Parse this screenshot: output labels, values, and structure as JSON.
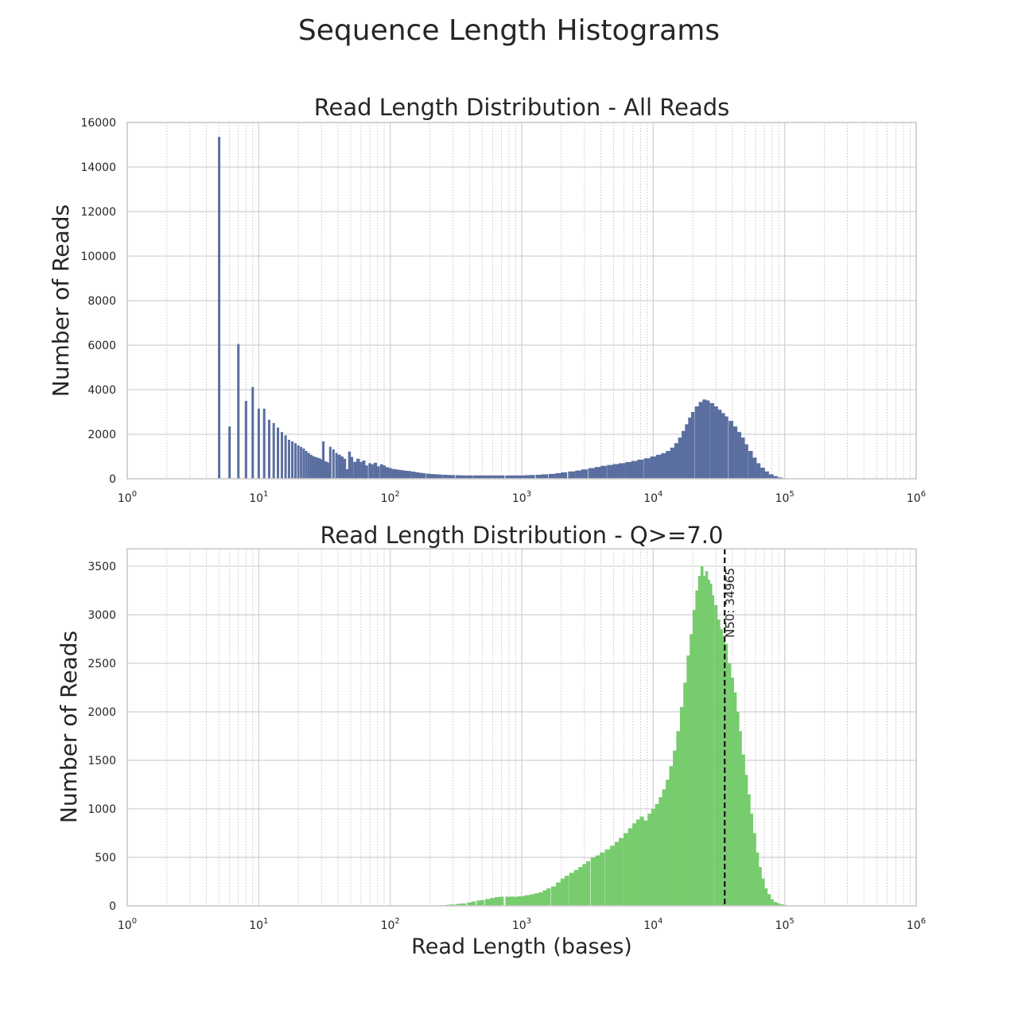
{
  "figure": {
    "title": "Sequence Length Histograms"
  },
  "chart_data": [
    {
      "type": "bar",
      "title": "Read Length Distribution - All Reads",
      "xlabel": "",
      "ylabel": "Number of Reads",
      "xscale": "log",
      "xlim": [
        1,
        1000000
      ],
      "ylim": [
        0,
        16000
      ],
      "yticks": [
        0,
        2000,
        4000,
        6000,
        8000,
        10000,
        12000,
        14000,
        16000
      ],
      "xticks": [
        {
          "base": "10",
          "exp": "0"
        },
        {
          "base": "10",
          "exp": "1"
        },
        {
          "base": "10",
          "exp": "2"
        },
        {
          "base": "10",
          "exp": "3"
        },
        {
          "base": "10",
          "exp": "4"
        },
        {
          "base": "10",
          "exp": "5"
        },
        {
          "base": "10",
          "exp": "6"
        }
      ],
      "grid": true,
      "color": "#5a6e9f",
      "bars": [
        [
          5,
          15350
        ],
        [
          6,
          2350
        ],
        [
          7,
          6050
        ],
        [
          8,
          3500
        ],
        [
          9,
          4120
        ],
        [
          10,
          3150
        ],
        [
          11,
          3150
        ],
        [
          12,
          2650
        ],
        [
          13,
          2500
        ],
        [
          14,
          2300
        ],
        [
          15,
          2100
        ],
        [
          16,
          1950
        ],
        [
          17,
          1750
        ],
        [
          18,
          1680
        ],
        [
          19,
          1600
        ],
        [
          20,
          1500
        ],
        [
          21,
          1430
        ],
        [
          22,
          1360
        ],
        [
          23,
          1250
        ],
        [
          24,
          1160
        ],
        [
          25,
          1080
        ],
        [
          26,
          1020
        ],
        [
          27,
          980
        ],
        [
          28,
          950
        ],
        [
          29,
          920
        ],
        [
          30,
          880
        ],
        [
          31,
          1680
        ],
        [
          32,
          790
        ],
        [
          33,
          760
        ],
        [
          34,
          720
        ],
        [
          35,
          1440
        ],
        [
          37,
          1320
        ],
        [
          39,
          1160
        ],
        [
          41,
          1080
        ],
        [
          43,
          1000
        ],
        [
          45,
          900
        ],
        [
          47,
          430
        ],
        [
          49,
          1220
        ],
        [
          51,
          980
        ],
        [
          54,
          760
        ],
        [
          57,
          900
        ],
        [
          60,
          760
        ],
        [
          63,
          820
        ],
        [
          66,
          600
        ],
        [
          70,
          700
        ],
        [
          73,
          650
        ],
        [
          77,
          720
        ],
        [
          81,
          560
        ],
        [
          86,
          650
        ],
        [
          90,
          600
        ],
        [
          95,
          520
        ],
        [
          100,
          480
        ],
        [
          106,
          440
        ],
        [
          112,
          420
        ],
        [
          118,
          400
        ],
        [
          125,
          380
        ],
        [
          132,
          360
        ],
        [
          140,
          350
        ],
        [
          150,
          320
        ],
        [
          160,
          290
        ],
        [
          170,
          270
        ],
        [
          180,
          250
        ],
        [
          195,
          230
        ],
        [
          210,
          210
        ],
        [
          225,
          200
        ],
        [
          240,
          190
        ],
        [
          260,
          180
        ],
        [
          280,
          170
        ],
        [
          300,
          165
        ],
        [
          330,
          160
        ],
        [
          360,
          150
        ],
        [
          400,
          150
        ],
        [
          450,
          150
        ],
        [
          500,
          150
        ],
        [
          560,
          150
        ],
        [
          630,
          150
        ],
        [
          700,
          150
        ],
        [
          800,
          150
        ],
        [
          900,
          150
        ],
        [
          1000,
          150
        ],
        [
          1100,
          160
        ],
        [
          1200,
          170
        ],
        [
          1350,
          180
        ],
        [
          1500,
          200
        ],
        [
          1700,
          220
        ],
        [
          1900,
          250
        ],
        [
          2100,
          290
        ],
        [
          2400,
          330
        ],
        [
          2700,
          370
        ],
        [
          3000,
          420
        ],
        [
          3400,
          480
        ],
        [
          3800,
          530
        ],
        [
          4200,
          580
        ],
        [
          4700,
          620
        ],
        [
          5200,
          660
        ],
        [
          5800,
          700
        ],
        [
          6500,
          750
        ],
        [
          7200,
          800
        ],
        [
          8000,
          860
        ],
        [
          9000,
          920
        ],
        [
          10000,
          1000
        ],
        [
          11000,
          1080
        ],
        [
          12000,
          1150
        ],
        [
          13000,
          1250
        ],
        [
          14000,
          1400
        ],
        [
          15000,
          1600
        ],
        [
          16000,
          1850
        ],
        [
          17000,
          2150
        ],
        [
          18000,
          2450
        ],
        [
          19000,
          2750
        ],
        [
          20000,
          3000
        ],
        [
          21500,
          3250
        ],
        [
          23000,
          3450
        ],
        [
          24500,
          3560
        ],
        [
          26000,
          3520
        ],
        [
          28000,
          3400
        ],
        [
          30000,
          3250
        ],
        [
          32000,
          3100
        ],
        [
          34000,
          2950
        ],
        [
          36000,
          2800
        ],
        [
          39000,
          2600
        ],
        [
          42000,
          2350
        ],
        [
          45000,
          2100
        ],
        [
          48000,
          1850
        ],
        [
          51000,
          1550
        ],
        [
          55000,
          1250
        ],
        [
          59000,
          950
        ],
        [
          63000,
          700
        ],
        [
          68000,
          500
        ],
        [
          73000,
          330
        ],
        [
          79000,
          200
        ],
        [
          85000,
          120
        ],
        [
          92000,
          60
        ],
        [
          100000,
          25
        ],
        [
          108000,
          8
        ]
      ]
    },
    {
      "type": "bar",
      "title": "Read Length Distribution - Q>=7.0",
      "xlabel": "Read Length (bases)",
      "ylabel": "Number of Reads",
      "xscale": "log",
      "xlim": [
        1,
        1000000
      ],
      "ylim": [
        0,
        3680
      ],
      "yticks": [
        0,
        500,
        1000,
        1500,
        2000,
        2500,
        3000,
        3500
      ],
      "xticks": [
        {
          "base": "10",
          "exp": "0"
        },
        {
          "base": "10",
          "exp": "1"
        },
        {
          "base": "10",
          "exp": "2"
        },
        {
          "base": "10",
          "exp": "3"
        },
        {
          "base": "10",
          "exp": "4"
        },
        {
          "base": "10",
          "exp": "5"
        },
        {
          "base": "10",
          "exp": "6"
        }
      ],
      "grid": true,
      "color": "#77cc6e",
      "n50": {
        "value": 34965,
        "label": "N50: 34965"
      },
      "bars": [
        [
          150,
          3
        ],
        [
          200,
          5
        ],
        [
          250,
          8
        ],
        [
          280,
          12
        ],
        [
          300,
          15
        ],
        [
          330,
          20
        ],
        [
          360,
          25
        ],
        [
          400,
          35
        ],
        [
          430,
          45
        ],
        [
          470,
          55
        ],
        [
          500,
          60
        ],
        [
          550,
          70
        ],
        [
          600,
          80
        ],
        [
          650,
          90
        ],
        [
          700,
          95
        ],
        [
          800,
          95
        ],
        [
          900,
          95
        ],
        [
          1000,
          100
        ],
        [
          1100,
          110
        ],
        [
          1200,
          120
        ],
        [
          1300,
          130
        ],
        [
          1400,
          140
        ],
        [
          1500,
          160
        ],
        [
          1600,
          180
        ],
        [
          1750,
          200
        ],
        [
          1900,
          240
        ],
        [
          2050,
          280
        ],
        [
          2200,
          310
        ],
        [
          2400,
          340
        ],
        [
          2600,
          370
        ],
        [
          2800,
          400
        ],
        [
          3000,
          430
        ],
        [
          3200,
          460
        ],
        [
          3500,
          500
        ],
        [
          3800,
          520
        ],
        [
          4100,
          550
        ],
        [
          4500,
          580
        ],
        [
          4900,
          620
        ],
        [
          5300,
          660
        ],
        [
          5700,
          700
        ],
        [
          6200,
          750
        ],
        [
          6700,
          800
        ],
        [
          7200,
          850
        ],
        [
          7700,
          890
        ],
        [
          8200,
          920
        ],
        [
          8800,
          880
        ],
        [
          9400,
          950
        ],
        [
          10000,
          1000
        ],
        [
          10700,
          1050
        ],
        [
          11400,
          1120
        ],
        [
          12100,
          1200
        ],
        [
          12900,
          1300
        ],
        [
          13700,
          1440
        ],
        [
          14600,
          1600
        ],
        [
          15500,
          1800
        ],
        [
          16500,
          2050
        ],
        [
          17500,
          2300
        ],
        [
          18500,
          2580
        ],
        [
          19500,
          2800
        ],
        [
          20500,
          3050
        ],
        [
          21500,
          3250
        ],
        [
          22500,
          3400
        ],
        [
          23500,
          3500
        ],
        [
          24500,
          3400
        ],
        [
          25500,
          3450
        ],
        [
          26500,
          3360
        ],
        [
          27500,
          3320
        ],
        [
          28500,
          3200
        ],
        [
          30000,
          3100
        ],
        [
          31500,
          2950
        ],
        [
          33000,
          2850
        ],
        [
          34500,
          2780
        ],
        [
          36000,
          2700
        ],
        [
          38000,
          2500
        ],
        [
          40000,
          2350
        ],
        [
          42000,
          2200
        ],
        [
          44000,
          2000
        ],
        [
          46000,
          1800
        ],
        [
          48500,
          1560
        ],
        [
          51000,
          1350
        ],
        [
          53500,
          1150
        ],
        [
          56000,
          950
        ],
        [
          59000,
          750
        ],
        [
          62000,
          550
        ],
        [
          65000,
          400
        ],
        [
          68500,
          280
        ],
        [
          72000,
          180
        ],
        [
          76000,
          120
        ],
        [
          80000,
          70
        ],
        [
          85000,
          40
        ],
        [
          90000,
          25
        ],
        [
          96000,
          15
        ],
        [
          102000,
          8
        ],
        [
          108000,
          3
        ]
      ]
    }
  ]
}
